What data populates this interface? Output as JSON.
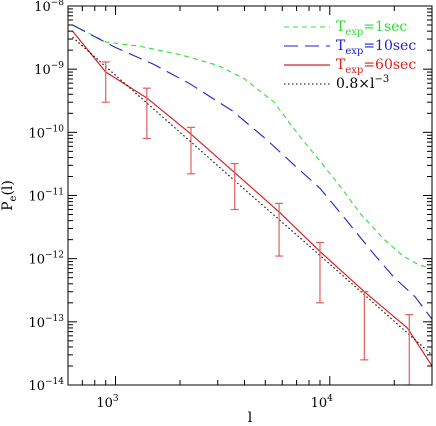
{
  "chart_data": {
    "type": "line",
    "xlabel": "l",
    "ylabel": "P_e(l)",
    "xscale": "log",
    "yscale": "log",
    "xlim": [
      600,
      30000
    ],
    "ylim": [
      1e-14,
      1e-08
    ],
    "x_ticks": [
      {
        "value": 1000,
        "base": "10",
        "exp": "3"
      },
      {
        "value": 10000,
        "base": "10",
        "exp": "4"
      }
    ],
    "y_ticks": [
      {
        "value": 1e-14,
        "base": "10",
        "exp": "−14"
      },
      {
        "value": 1e-13,
        "base": "10",
        "exp": "−13"
      },
      {
        "value": 1e-12,
        "base": "10",
        "exp": "−12"
      },
      {
        "value": 1e-11,
        "base": "10",
        "exp": "−11"
      },
      {
        "value": 1e-10,
        "base": "10",
        "exp": "−10"
      },
      {
        "value": 1e-09,
        "base": "10",
        "exp": "−9"
      },
      {
        "value": 1e-08,
        "base": "10",
        "exp": "−8"
      }
    ],
    "legend_position": "top-right",
    "series": [
      {
        "name_main": "T",
        "name_sub": "exp",
        "name_rest": "=1sec",
        "color": "#33dd33",
        "dash": "5,4",
        "points": [
          [
            630,
            5e-09
          ],
          [
            900,
            2.7e-09
          ],
          [
            1300,
            2.3e-09
          ],
          [
            2000,
            1.7e-09
          ],
          [
            3000,
            1.15e-09
          ],
          [
            4000,
            7e-10
          ],
          [
            5500,
            3e-10
          ],
          [
            7000,
            1e-10
          ],
          [
            9000,
            3.5e-11
          ],
          [
            11000,
            1.5e-11
          ],
          [
            14000,
            5e-12
          ],
          [
            18000,
            2e-12
          ],
          [
            22000,
            1.1e-12
          ],
          [
            26000,
            8e-13
          ],
          [
            30000,
            7e-13
          ]
        ]
      },
      {
        "name_main": "T",
        "name_sub": "exp",
        "name_rest": "=10sec",
        "color": "#2222cc",
        "dash": "14,7",
        "points": [
          [
            630,
            5e-09
          ],
          [
            1000,
            2.2e-09
          ],
          [
            1500,
            1.2e-09
          ],
          [
            2200,
            6e-10
          ],
          [
            3500,
            2.2e-10
          ],
          [
            5000,
            8e-11
          ],
          [
            7000,
            2.8e-11
          ],
          [
            9000,
            1.3e-11
          ],
          [
            12000,
            4e-12
          ],
          [
            16000,
            1.2e-12
          ],
          [
            20000,
            5e-13
          ],
          [
            25000,
            2.5e-13
          ],
          [
            30000,
            1.1e-13
          ]
        ]
      },
      {
        "name_main": "T",
        "name_sub": "exp",
        "name_rest": "=60sec",
        "color": "#dd2222",
        "dash": "",
        "points": [
          [
            630,
            4e-09
          ],
          [
            900,
            9e-10
          ],
          [
            1400,
            3.5e-10
          ],
          [
            2200,
            1e-10
          ],
          [
            3600,
            2.3e-11
          ],
          [
            5800,
            5.5e-12
          ],
          [
            9000,
            1.3e-12
          ],
          [
            14500,
            3e-13
          ],
          [
            23000,
            8e-14
          ],
          [
            30000,
            2e-14
          ]
        ]
      },
      {
        "name_main": "0.8×l",
        "name_sup": "−3",
        "name_sub": "",
        "name_rest": "",
        "color": "#000000",
        "dash": "1.5,2.5",
        "points": [
          [
            630,
            3.2e-09
          ],
          [
            1000,
            8e-10
          ],
          [
            2000,
            1e-10
          ],
          [
            4000,
            1.25e-11
          ],
          [
            8000,
            1.6e-12
          ],
          [
            16000,
            2e-13
          ],
          [
            30000,
            3e-14
          ]
        ]
      }
    ],
    "error_bars": {
      "color": "#e06060",
      "points": [
        {
          "x": 900,
          "y": 9e-10,
          "lo": 3e-10,
          "hi": 1.3e-09
        },
        {
          "x": 1400,
          "y": 3.5e-10,
          "lo": 8e-11,
          "hi": 5e-10
        },
        {
          "x": 2250,
          "y": 1e-10,
          "lo": 2.2e-11,
          "hi": 1.2e-10
        },
        {
          "x": 3600,
          "y": 2.3e-11,
          "lo": 6e-12,
          "hi": 3.2e-11
        },
        {
          "x": 5800,
          "y": 5.5e-12,
          "lo": 1.1e-12,
          "hi": 7.5e-12
        },
        {
          "x": 9000,
          "y": 1.3e-12,
          "lo": 2e-13,
          "hi": 1.8e-12
        },
        {
          "x": 14500,
          "y": 3e-13,
          "lo": 2.5e-14,
          "hi": 3e-13
        },
        {
          "x": 23500,
          "y": 8e-14,
          "lo": 1e-14,
          "hi": 1.3e-13
        }
      ]
    }
  }
}
